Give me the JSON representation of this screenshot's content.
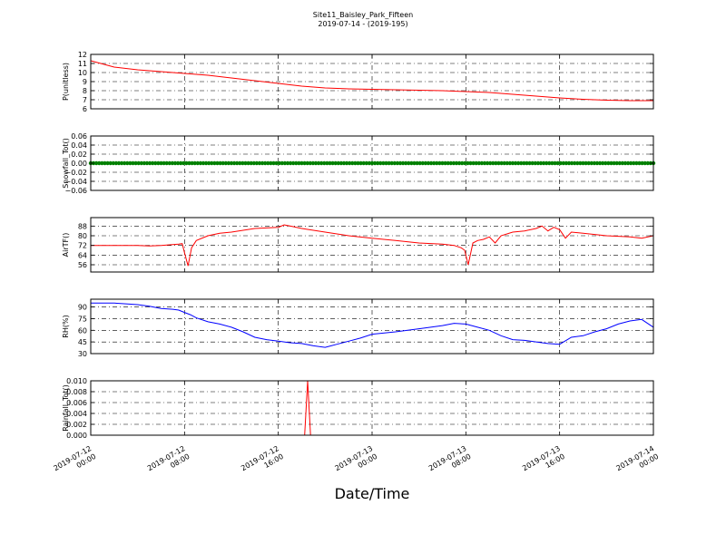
{
  "figure": {
    "title": "Site11_Baisley_Park_Fifteen",
    "subtitle": "2019-07-14 - (2019-195)",
    "xlabel": "Date/Time",
    "x_range": [
      "2019-07-12 00:00",
      "2019-07-14 00:00"
    ],
    "x_tick_labels": [
      [
        "2019-07-12",
        "00:00"
      ],
      [
        "2019-07-12",
        "08:00"
      ],
      [
        "2019-07-12",
        "16:00"
      ],
      [
        "2019-07-13",
        "00:00"
      ],
      [
        "2019-07-13",
        "08:00"
      ],
      [
        "2019-07-13",
        "16:00"
      ],
      [
        "2019-07-14",
        "00:00"
      ]
    ]
  },
  "chart_data": [
    {
      "type": "line",
      "ylabel": "P(unitless)",
      "ylim": [
        6,
        12
      ],
      "yticks": [
        6,
        7,
        8,
        9,
        10,
        11,
        12
      ],
      "ytick_labels": [
        "6",
        "7",
        "8",
        "9",
        "10",
        "11",
        "12"
      ],
      "grid": true,
      "color": "#ff0000",
      "x_hours": [
        0,
        2,
        4,
        6,
        8,
        10,
        12,
        14,
        16,
        18,
        20,
        22,
        24,
        26,
        28,
        30,
        32,
        34,
        36,
        38,
        40,
        42,
        44,
        46,
        48
      ],
      "values": [
        11.3,
        10.6,
        10.3,
        10.1,
        9.9,
        9.7,
        9.4,
        9.1,
        8.8,
        8.5,
        8.3,
        8.2,
        8.15,
        8.1,
        8.05,
        8.0,
        7.9,
        7.8,
        7.6,
        7.4,
        7.2,
        7.05,
        6.95,
        6.9,
        6.9
      ]
    },
    {
      "type": "scatter",
      "ylabel": "Snowfall_Tot()",
      "ylim": [
        -0.06,
        0.06
      ],
      "yticks": [
        -0.06,
        -0.04,
        -0.02,
        0,
        0.02,
        0.04,
        0.06
      ],
      "ytick_labels": [
        "−0.06",
        "−0.04",
        "−0.02",
        "0.00",
        "0.02",
        "0.04",
        "0.06"
      ],
      "grid": true,
      "color": "#008000",
      "x_hours": [
        0,
        48
      ],
      "values": [
        0,
        0
      ],
      "constant_value": 0
    },
    {
      "type": "line",
      "ylabel": "AirTF()",
      "ylim": [
        50,
        95
      ],
      "yticks": [
        56,
        64,
        72,
        80,
        88
      ],
      "ytick_labels": [
        "56",
        "64",
        "72",
        "80",
        "88"
      ],
      "grid": true,
      "color": "#ff0000",
      "x_hours": [
        0,
        2,
        4,
        5,
        6,
        7.5,
        7.8,
        8.0,
        8.3,
        8.6,
        9,
        10,
        11,
        12,
        14,
        16,
        16.5,
        17,
        18,
        20,
        22,
        24,
        26,
        28,
        30,
        31,
        31.6,
        31.9,
        32.2,
        32.6,
        33,
        33.5,
        34,
        34.5,
        35,
        36,
        37,
        38,
        38.5,
        39,
        39.5,
        40,
        40.5,
        41,
        42,
        44,
        46,
        47,
        48
      ],
      "values": [
        72,
        72,
        72,
        71.5,
        72,
        73,
        73.5,
        66,
        55,
        70,
        76,
        80,
        82,
        83,
        86,
        87,
        89,
        88,
        86,
        83,
        80,
        78,
        76,
        74,
        73,
        72,
        70,
        68,
        56,
        74,
        76,
        77,
        79,
        74,
        80,
        83,
        84,
        86,
        88,
        84,
        87,
        85,
        78,
        83,
        82,
        80,
        79,
        78,
        80
      ]
    },
    {
      "type": "line",
      "ylabel": "RH(%)",
      "ylim": [
        30,
        100
      ],
      "yticks": [
        30,
        45,
        60,
        75,
        90
      ],
      "ytick_labels": [
        "30",
        "45",
        "60",
        "75",
        "90"
      ],
      "grid": true,
      "color": "#0000ff",
      "x_hours": [
        0,
        2,
        3,
        4,
        5,
        6,
        7,
        7.5,
        8,
        8.5,
        9,
        10,
        11,
        12,
        13,
        14,
        15,
        16,
        17,
        18,
        19,
        20,
        21,
        22,
        23,
        24,
        26,
        28,
        30,
        31,
        32,
        33,
        34,
        35,
        36,
        37,
        38,
        39,
        40,
        41,
        42,
        43,
        44,
        45,
        46,
        47,
        48
      ],
      "values": [
        95,
        95,
        94,
        93,
        91,
        88,
        87,
        86,
        83,
        80,
        76,
        71,
        68,
        64,
        58,
        51,
        48,
        46,
        44,
        43,
        40,
        38,
        42,
        46,
        50,
        55,
        58,
        62,
        66,
        69,
        68,
        64,
        60,
        53,
        48,
        47,
        45,
        43,
        42,
        51,
        53,
        58,
        62,
        68,
        72,
        74,
        64
      ]
    },
    {
      "type": "line",
      "ylabel": "Rainfall_Tot()",
      "ylim": [
        0,
        0.01
      ],
      "yticks": [
        0,
        0.002,
        0.004,
        0.006,
        0.008,
        0.01
      ],
      "ytick_labels": [
        "0.000",
        "0.002",
        "0.004",
        "0.006",
        "0.008",
        "0.010"
      ],
      "grid": true,
      "color": "#ff0000",
      "x_hours": [
        0,
        18.25,
        18.5,
        18.75,
        48
      ],
      "values": [
        0,
        0,
        0.01,
        0,
        0
      ]
    }
  ]
}
